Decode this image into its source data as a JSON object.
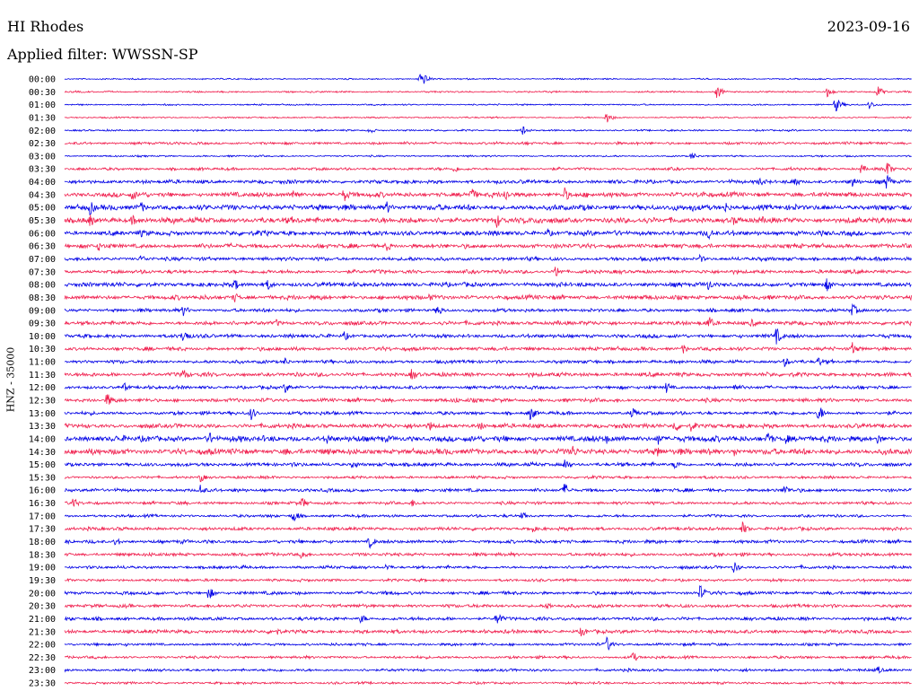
{
  "header": {
    "station": "HI Rhodes",
    "date": "2023-09-16",
    "filter_label": "Applied filter: WWSSN-SP"
  },
  "axis": {
    "channel_label": "HNZ - 35000"
  },
  "colors": {
    "trace_a": "#0000e6",
    "trace_b": "#f0204f",
    "background": "#ffffff",
    "text": "#000000"
  },
  "chart_data": {
    "type": "line",
    "title": "HI Rhodes",
    "subtitle": "Applied filter: WWSSN-SP",
    "ylabel": "HNZ - 35000",
    "grid": false,
    "legend": "none",
    "series_colors_alternate": [
      "#0000e6",
      "#f0204f"
    ],
    "time_labels": [
      "00:00",
      "00:30",
      "01:00",
      "01:30",
      "02:00",
      "02:30",
      "03:00",
      "03:30",
      "04:00",
      "04:30",
      "05:00",
      "05:30",
      "06:00",
      "06:30",
      "07:00",
      "07:30",
      "08:00",
      "08:30",
      "09:00",
      "09:30",
      "10:00",
      "10:30",
      "11:00",
      "11:30",
      "12:00",
      "12:30",
      "13:00",
      "13:30",
      "14:00",
      "14:30",
      "15:00",
      "15:30",
      "16:00",
      "16:30",
      "17:00",
      "17:30",
      "18:00",
      "18:30",
      "19:00",
      "19:30",
      "20:00",
      "20:30",
      "21:00",
      "21:30",
      "22:00",
      "22:30",
      "23:00",
      "23:30"
    ],
    "noise_level": [
      0.8,
      1.0,
      0.9,
      0.9,
      1.0,
      1.6,
      1.0,
      1.6,
      2.2,
      2.8,
      3.2,
      3.4,
      2.8,
      2.6,
      2.2,
      2.2,
      2.6,
      2.6,
      2.0,
      2.4,
      2.2,
      2.2,
      2.0,
      2.4,
      2.0,
      2.2,
      2.0,
      2.6,
      3.4,
      3.4,
      2.2,
      1.6,
      2.0,
      1.8,
      1.6,
      2.0,
      2.0,
      2.0,
      1.8,
      1.6,
      2.0,
      2.0,
      2.0,
      2.2,
      1.6,
      1.6,
      1.6,
      1.4
    ],
    "events": [
      [
        [
          0.42,
          11
        ]
      ],
      [
        [
          0.77,
          8
        ],
        [
          0.9,
          6
        ],
        [
          0.96,
          7
        ]
      ],
      [
        [
          0.91,
          9
        ],
        [
          0.95,
          5
        ]
      ],
      [
        [
          0.64,
          7
        ]
      ],
      [
        [
          0.54,
          6
        ],
        [
          0.36,
          4
        ]
      ],
      [],
      [
        [
          0.74,
          5
        ]
      ],
      [
        [
          0.46,
          5
        ],
        [
          0.94,
          6
        ],
        [
          0.97,
          10
        ]
      ],
      [
        [
          0.82,
          6
        ],
        [
          0.86,
          8
        ],
        [
          0.93,
          7
        ],
        [
          0.97,
          10
        ]
      ],
      [
        [
          0.08,
          7
        ],
        [
          0.27,
          9
        ],
        [
          0.33,
          9
        ],
        [
          0.48,
          9
        ],
        [
          0.52,
          8
        ],
        [
          0.59,
          9
        ],
        [
          0.75,
          6
        ]
      ],
      [
        [
          0.03,
          9
        ],
        [
          0.09,
          7
        ],
        [
          0.38,
          8
        ],
        [
          0.74,
          6
        ],
        [
          0.78,
          7
        ]
      ],
      [
        [
          0.03,
          8
        ],
        [
          0.08,
          7
        ],
        [
          0.51,
          9
        ],
        [
          0.56,
          7
        ],
        [
          0.79,
          6
        ]
      ],
      [
        [
          0.09,
          5
        ],
        [
          0.57,
          6
        ],
        [
          0.76,
          7
        ]
      ],
      [
        [
          0.04,
          6
        ],
        [
          0.38,
          7
        ]
      ],
      [
        [
          0.09,
          5
        ],
        [
          0.75,
          5
        ]
      ],
      [
        [
          0.58,
          8
        ]
      ],
      [
        [
          0.2,
          8
        ],
        [
          0.24,
          7
        ],
        [
          0.76,
          7
        ],
        [
          0.9,
          9
        ]
      ],
      [
        [
          0.2,
          7
        ],
        [
          0.43,
          5
        ]
      ],
      [
        [
          0.14,
          7
        ],
        [
          0.44,
          8
        ],
        [
          0.93,
          8
        ]
      ],
      [
        [
          0.25,
          5
        ],
        [
          0.76,
          9
        ],
        [
          0.81,
          6
        ]
      ],
      [
        [
          0.14,
          10
        ],
        [
          0.33,
          6
        ],
        [
          0.84,
          10
        ]
      ],
      [
        [
          0.73,
          6
        ],
        [
          0.93,
          8
        ]
      ],
      [
        [
          0.26,
          5
        ],
        [
          0.85,
          6
        ],
        [
          0.89,
          6
        ]
      ],
      [
        [
          0.14,
          8
        ],
        [
          0.41,
          8
        ]
      ],
      [
        [
          0.07,
          6
        ],
        [
          0.26,
          7
        ],
        [
          0.71,
          7
        ],
        [
          0.79,
          6
        ]
      ],
      [
        [
          0.05,
          9
        ],
        [
          0.46,
          5
        ]
      ],
      [
        [
          0.22,
          8
        ],
        [
          0.55,
          9
        ],
        [
          0.67,
          7
        ],
        [
          0.89,
          10
        ]
      ],
      [
        [
          0.43,
          7
        ],
        [
          0.49,
          6
        ],
        [
          0.72,
          9
        ],
        [
          0.74,
          8
        ]
      ],
      [
        [
          0.17,
          9
        ],
        [
          0.31,
          7
        ],
        [
          0.64,
          6
        ],
        [
          0.7,
          8
        ],
        [
          0.83,
          9
        ],
        [
          0.85,
          8
        ],
        [
          0.96,
          7
        ]
      ],
      [
        [
          0.26,
          6
        ],
        [
          0.6,
          8
        ],
        [
          0.7,
          7
        ],
        [
          0.76,
          7
        ],
        [
          0.79,
          6
        ]
      ],
      [
        [
          0.34,
          6
        ],
        [
          0.59,
          8
        ],
        [
          0.72,
          6
        ]
      ],
      [
        [
          0.16,
          6
        ]
      ],
      [
        [
          0.16,
          7
        ],
        [
          0.59,
          9
        ],
        [
          0.85,
          7
        ]
      ],
      [
        [
          0.01,
          7
        ],
        [
          0.28,
          7
        ],
        [
          0.41,
          5
        ]
      ],
      [
        [
          0.27,
          8
        ],
        [
          0.54,
          5
        ]
      ],
      [
        [
          0.55,
          6
        ],
        [
          0.8,
          8
        ]
      ],
      [
        [
          0.06,
          6
        ],
        [
          0.36,
          8
        ]
      ],
      [
        [
          0.28,
          7
        ]
      ],
      [
        [
          0.38,
          5
        ],
        [
          0.79,
          7
        ]
      ],
      [],
      [
        [
          0.17,
          8
        ],
        [
          0.75,
          10
        ]
      ],
      [
        [
          0.57,
          5
        ]
      ],
      [
        [
          0.35,
          6
        ],
        [
          0.51,
          9
        ]
      ],
      [
        [
          0.25,
          5
        ],
        [
          0.61,
          7
        ]
      ],
      [
        [
          0.64,
          9
        ]
      ],
      [
        [
          0.67,
          7
        ]
      ],
      [
        [
          0.96,
          5
        ]
      ],
      []
    ]
  }
}
